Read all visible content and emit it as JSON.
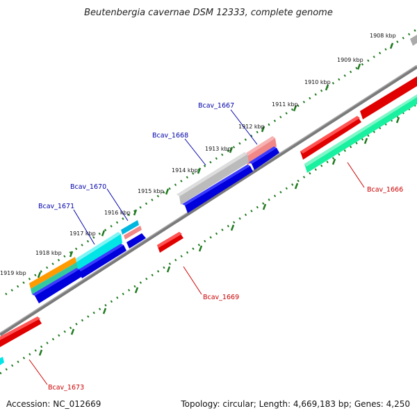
{
  "title": "Beutenbergia cavernae DSM 12333, complete genome",
  "footer": {
    "accession": "Accession: NC_012669",
    "topology": "Topology: circular; Length: 4,669,183 bp; Genes: 4,250"
  },
  "colors": {
    "background": "#ffffff",
    "backbone": "#7a7a7a",
    "tick_green": "#1f7a1f",
    "label_blue": "#0000aa",
    "label_red": "#cc0000",
    "feature_red": "#e00000",
    "feature_blue": "#0000dd",
    "feature_gray": "#aaaaaa",
    "feature_pink": "#f08888",
    "feature_cyan": "#00e5e5",
    "feature_orange": "#ff9a00",
    "feature_teal": "#33c9a0",
    "feature_mint": "#19f0a0"
  },
  "ticks": [
    "1908 kbp",
    "1909 kbp",
    "1910 kbp",
    "1911 kbp",
    "1912 kbp",
    "1913 kbp",
    "1914 kbp",
    "1915 kbp",
    "1916 kbp",
    "1917 kbp",
    "1918 kbp",
    "1919 kbp"
  ],
  "gene_labels": [
    {
      "id": "Bcav_1667",
      "text": "Bcav_1667",
      "color": "blue"
    },
    {
      "id": "Bcav_1668",
      "text": "Bcav_1668",
      "color": "blue"
    },
    {
      "id": "Bcav_1670",
      "text": "Bcav_1670",
      "color": "blue"
    },
    {
      "id": "Bcav_1671",
      "text": "Bcav_1671",
      "color": "blue"
    },
    {
      "id": "Bcav_1666",
      "text": "Bcav_1666",
      "color": "red"
    },
    {
      "id": "Bcav_1669",
      "text": "Bcav_1669",
      "color": "red"
    },
    {
      "id": "Bcav_1673",
      "text": "Bcav_1673",
      "color": "red"
    }
  ]
}
